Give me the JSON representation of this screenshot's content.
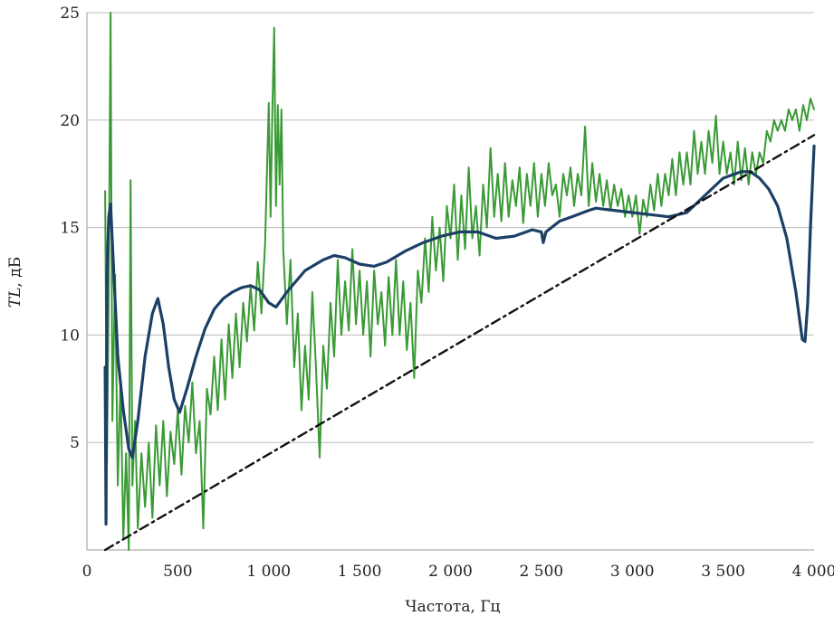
{
  "chart_data": {
    "type": "line",
    "xlabel": "Частота, Гц",
    "ylabel_italic": "TL",
    "ylabel_rest": ", дБ",
    "xlim": [
      0,
      4000
    ],
    "ylim": [
      0,
      25
    ],
    "grid": "horizontal",
    "x_ticks": [
      0,
      500,
      1000,
      1500,
      2000,
      2500,
      3000,
      3500,
      4000
    ],
    "x_tick_labels": [
      "0",
      "500",
      "1 000",
      "1 500",
      "2 000",
      "2 500",
      "3 000",
      "3 500",
      "4 000"
    ],
    "y_ticks": [
      5,
      10,
      15,
      20,
      25
    ],
    "y_tick_labels": [
      "5",
      "10",
      "15",
      "20",
      "25"
    ],
    "colors": {
      "measured": "#3a9a35",
      "calculated": "#1c3f66",
      "trend": "#111111",
      "grid": "#bdbdbd"
    },
    "series": [
      {
        "style": "solid-thin",
        "color": "#3a9a35",
        "points": [
          [
            100,
            16.7
          ],
          [
            110,
            4
          ],
          [
            120,
            12.5
          ],
          [
            130,
            25
          ],
          [
            140,
            6
          ],
          [
            155,
            12.8
          ],
          [
            170,
            3
          ],
          [
            185,
            8
          ],
          [
            200,
            0.5
          ],
          [
            215,
            4.5
          ],
          [
            230,
            0
          ],
          [
            240,
            17.2
          ],
          [
            250,
            3
          ],
          [
            265,
            6
          ],
          [
            280,
            1
          ],
          [
            300,
            4.5
          ],
          [
            320,
            2
          ],
          [
            340,
            5
          ],
          [
            360,
            1.5
          ],
          [
            380,
            5.8
          ],
          [
            400,
            3
          ],
          [
            420,
            6
          ],
          [
            440,
            2.5
          ],
          [
            460,
            5.5
          ],
          [
            480,
            4
          ],
          [
            500,
            6.5
          ],
          [
            520,
            3.5
          ],
          [
            540,
            6.7
          ],
          [
            560,
            5
          ],
          [
            580,
            7.8
          ],
          [
            600,
            4.5
          ],
          [
            620,
            6
          ],
          [
            640,
            1
          ],
          [
            660,
            7.5
          ],
          [
            680,
            6.3
          ],
          [
            700,
            9
          ],
          [
            720,
            6.5
          ],
          [
            740,
            9.8
          ],
          [
            760,
            7
          ],
          [
            780,
            10.5
          ],
          [
            800,
            8
          ],
          [
            820,
            11
          ],
          [
            840,
            8.5
          ],
          [
            860,
            11.5
          ],
          [
            880,
            9.7
          ],
          [
            900,
            12.3
          ],
          [
            920,
            10.2
          ],
          [
            940,
            13.4
          ],
          [
            960,
            11
          ],
          [
            980,
            14.2
          ],
          [
            1000,
            20.8
          ],
          [
            1010,
            15.5
          ],
          [
            1020,
            20.5
          ],
          [
            1030,
            24.3
          ],
          [
            1040,
            16
          ],
          [
            1050,
            20.7
          ],
          [
            1060,
            17
          ],
          [
            1070,
            20.5
          ],
          [
            1080,
            14
          ],
          [
            1100,
            10.5
          ],
          [
            1120,
            13.5
          ],
          [
            1140,
            8.5
          ],
          [
            1160,
            11
          ],
          [
            1180,
            6.5
          ],
          [
            1200,
            9.5
          ],
          [
            1220,
            7
          ],
          [
            1240,
            12
          ],
          [
            1260,
            8.5
          ],
          [
            1280,
            4.3
          ],
          [
            1300,
            9.5
          ],
          [
            1320,
            7.5
          ],
          [
            1340,
            11.5
          ],
          [
            1360,
            9
          ],
          [
            1380,
            13.5
          ],
          [
            1400,
            10
          ],
          [
            1420,
            12.5
          ],
          [
            1440,
            10.2
          ],
          [
            1460,
            14
          ],
          [
            1480,
            10.5
          ],
          [
            1500,
            13
          ],
          [
            1520,
            10
          ],
          [
            1540,
            12.5
          ],
          [
            1560,
            9
          ],
          [
            1580,
            13
          ],
          [
            1600,
            10.5
          ],
          [
            1620,
            12
          ],
          [
            1640,
            9.5
          ],
          [
            1660,
            12.7
          ],
          [
            1680,
            10
          ],
          [
            1700,
            13.5
          ],
          [
            1720,
            10
          ],
          [
            1740,
            12.5
          ],
          [
            1760,
            9.3
          ],
          [
            1780,
            11.5
          ],
          [
            1800,
            8
          ],
          [
            1820,
            13
          ],
          [
            1840,
            11.5
          ],
          [
            1860,
            14.5
          ],
          [
            1880,
            12
          ],
          [
            1900,
            15.5
          ],
          [
            1920,
            13
          ],
          [
            1940,
            15
          ],
          [
            1960,
            12.5
          ],
          [
            1980,
            16
          ],
          [
            2000,
            14.5
          ],
          [
            2020,
            17
          ],
          [
            2040,
            13.5
          ],
          [
            2060,
            16.5
          ],
          [
            2080,
            14
          ],
          [
            2100,
            17.8
          ],
          [
            2120,
            14.5
          ],
          [
            2140,
            16
          ],
          [
            2160,
            13.7
          ],
          [
            2180,
            17
          ],
          [
            2200,
            15
          ],
          [
            2220,
            18.7
          ],
          [
            2240,
            15.5
          ],
          [
            2260,
            17.5
          ],
          [
            2280,
            15.3
          ],
          [
            2300,
            18
          ],
          [
            2320,
            15.5
          ],
          [
            2340,
            17.2
          ],
          [
            2360,
            16
          ],
          [
            2380,
            17.8
          ],
          [
            2400,
            15.2
          ],
          [
            2420,
            17.5
          ],
          [
            2440,
            16
          ],
          [
            2460,
            18
          ],
          [
            2480,
            15.5
          ],
          [
            2500,
            17.5
          ],
          [
            2520,
            16
          ],
          [
            2540,
            18
          ],
          [
            2560,
            16.5
          ],
          [
            2580,
            17
          ],
          [
            2600,
            15.5
          ],
          [
            2620,
            17.5
          ],
          [
            2640,
            16.5
          ],
          [
            2660,
            17.8
          ],
          [
            2680,
            16
          ],
          [
            2700,
            17.5
          ],
          [
            2720,
            16.5
          ],
          [
            2740,
            19.7
          ],
          [
            2760,
            16
          ],
          [
            2780,
            18
          ],
          [
            2800,
            16.2
          ],
          [
            2820,
            17.5
          ],
          [
            2840,
            16
          ],
          [
            2860,
            17.2
          ],
          [
            2880,
            15.8
          ],
          [
            2900,
            17
          ],
          [
            2920,
            16
          ],
          [
            2940,
            16.8
          ],
          [
            2960,
            15.5
          ],
          [
            2980,
            16.5
          ],
          [
            3000,
            15.5
          ],
          [
            3020,
            16.5
          ],
          [
            3040,
            14.7
          ],
          [
            3060,
            16.3
          ],
          [
            3080,
            15.5
          ],
          [
            3100,
            17
          ],
          [
            3120,
            15.8
          ],
          [
            3140,
            17.5
          ],
          [
            3160,
            16
          ],
          [
            3180,
            17.5
          ],
          [
            3200,
            16.5
          ],
          [
            3220,
            18.2
          ],
          [
            3240,
            16.5
          ],
          [
            3260,
            18.5
          ],
          [
            3280,
            17
          ],
          [
            3300,
            18.5
          ],
          [
            3320,
            17
          ],
          [
            3340,
            19.5
          ],
          [
            3360,
            17.5
          ],
          [
            3380,
            19
          ],
          [
            3400,
            17.5
          ],
          [
            3420,
            19.5
          ],
          [
            3440,
            18
          ],
          [
            3460,
            20.2
          ],
          [
            3480,
            17.5
          ],
          [
            3500,
            19
          ],
          [
            3520,
            17.5
          ],
          [
            3540,
            18.5
          ],
          [
            3560,
            17
          ],
          [
            3580,
            19
          ],
          [
            3600,
            17.2
          ],
          [
            3620,
            18.7
          ],
          [
            3640,
            17
          ],
          [
            3660,
            18.5
          ],
          [
            3680,
            17.5
          ],
          [
            3700,
            18.5
          ],
          [
            3720,
            18
          ],
          [
            3740,
            19.5
          ],
          [
            3760,
            19
          ],
          [
            3780,
            20
          ],
          [
            3800,
            19.5
          ],
          [
            3820,
            20
          ],
          [
            3840,
            19.5
          ],
          [
            3860,
            20.5
          ],
          [
            3880,
            20
          ],
          [
            3900,
            20.5
          ],
          [
            3920,
            19.5
          ],
          [
            3940,
            20.7
          ],
          [
            3960,
            20
          ],
          [
            3980,
            21
          ],
          [
            4000,
            20.5
          ]
        ]
      },
      {
        "style": "solid-thick",
        "color": "#1c3f66",
        "points": [
          [
            100,
            8.5
          ],
          [
            105,
            1.2
          ],
          [
            110,
            12.8
          ],
          [
            120,
            15.5
          ],
          [
            130,
            16.1
          ],
          [
            150,
            12.5
          ],
          [
            170,
            9
          ],
          [
            200,
            6.5
          ],
          [
            230,
            4.7
          ],
          [
            250,
            4.3
          ],
          [
            280,
            6
          ],
          [
            320,
            9
          ],
          [
            360,
            11
          ],
          [
            390,
            11.7
          ],
          [
            420,
            10.5
          ],
          [
            450,
            8.5
          ],
          [
            480,
            7
          ],
          [
            510,
            6.4
          ],
          [
            550,
            7.5
          ],
          [
            600,
            9
          ],
          [
            650,
            10.3
          ],
          [
            700,
            11.2
          ],
          [
            750,
            11.7
          ],
          [
            800,
            12
          ],
          [
            850,
            12.2
          ],
          [
            900,
            12.3
          ],
          [
            950,
            12.1
          ],
          [
            1000,
            11.5
          ],
          [
            1040,
            11.3
          ],
          [
            1100,
            12
          ],
          [
            1200,
            13
          ],
          [
            1300,
            13.5
          ],
          [
            1360,
            13.7
          ],
          [
            1420,
            13.6
          ],
          [
            1500,
            13.3
          ],
          [
            1580,
            13.2
          ],
          [
            1650,
            13.4
          ],
          [
            1750,
            13.9
          ],
          [
            1850,
            14.3
          ],
          [
            1950,
            14.6
          ],
          [
            2050,
            14.8
          ],
          [
            2150,
            14.8
          ],
          [
            2250,
            14.5
          ],
          [
            2350,
            14.6
          ],
          [
            2450,
            14.9
          ],
          [
            2500,
            14.8
          ],
          [
            2510,
            14.3
          ],
          [
            2525,
            14.8
          ],
          [
            2600,
            15.3
          ],
          [
            2700,
            15.6
          ],
          [
            2760,
            15.8
          ],
          [
            2800,
            15.9
          ],
          [
            2900,
            15.8
          ],
          [
            3000,
            15.7
          ],
          [
            3100,
            15.6
          ],
          [
            3200,
            15.5
          ],
          [
            3300,
            15.7
          ],
          [
            3400,
            16.5
          ],
          [
            3500,
            17.3
          ],
          [
            3600,
            17.6
          ],
          [
            3650,
            17.6
          ],
          [
            3700,
            17.3
          ],
          [
            3750,
            16.8
          ],
          [
            3800,
            16
          ],
          [
            3850,
            14.5
          ],
          [
            3900,
            12
          ],
          [
            3935,
            9.8
          ],
          [
            3950,
            9.7
          ],
          [
            3965,
            11.5
          ],
          [
            3980,
            15
          ],
          [
            4000,
            18.8
          ]
        ]
      },
      {
        "style": "dash-dot",
        "color": "#111111",
        "points": [
          [
            100,
            0
          ],
          [
            4000,
            19.3
          ]
        ]
      }
    ]
  }
}
